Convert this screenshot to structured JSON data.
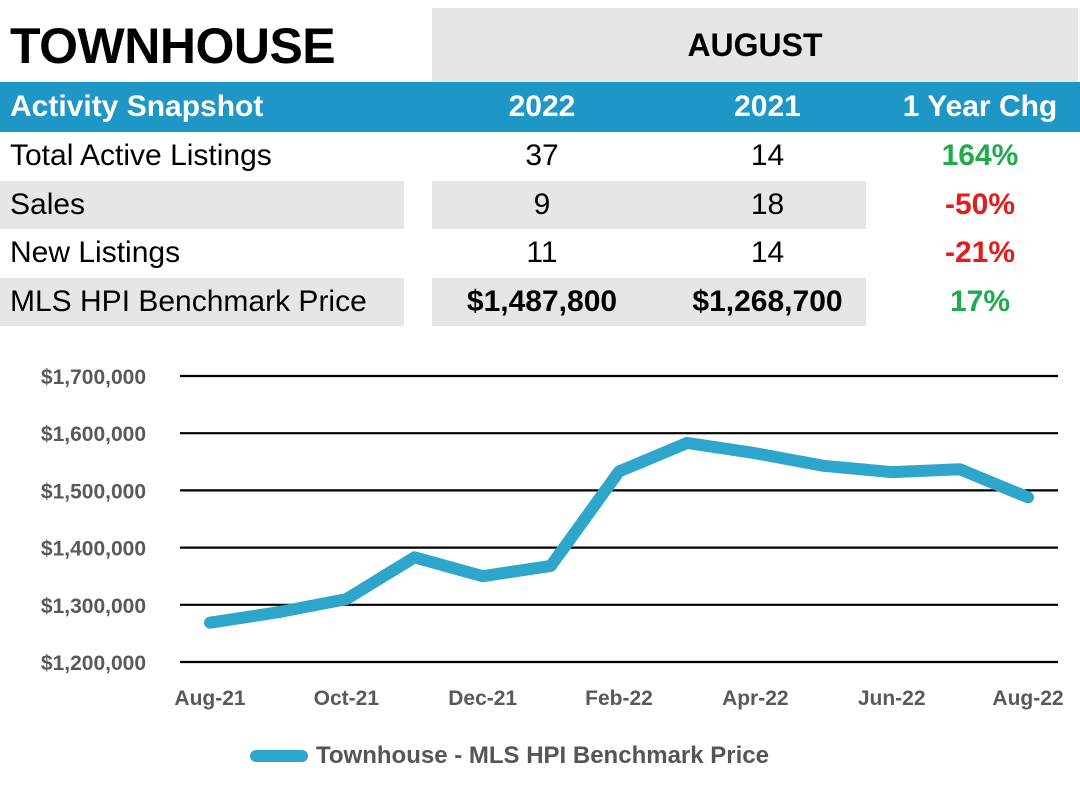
{
  "header": {
    "title": "TOWNHOUSE",
    "month": "AUGUST"
  },
  "table": {
    "columns": [
      "Activity Snapshot",
      "2022",
      "2021",
      "1 Year Chg"
    ],
    "rows": [
      {
        "label": "Total Active Listings",
        "v2022": "37",
        "v2021": "14",
        "chg": "164%",
        "chg_sign": "pos"
      },
      {
        "label": "Sales",
        "v2022": "9",
        "v2021": "18",
        "chg": "-50%",
        "chg_sign": "neg"
      },
      {
        "label": "New Listings",
        "v2022": "11",
        "v2021": "14",
        "chg": "-21%",
        "chg_sign": "neg"
      },
      {
        "label": "MLS HPI Benchmark Price",
        "v2022": "$1,487,800",
        "v2021": "$1,268,700",
        "chg": "17%",
        "chg_sign": "pos"
      }
    ]
  },
  "colors": {
    "header_bg": "#1f97c6",
    "line": "#2ea6cc",
    "positive": "#1faa4b",
    "negative": "#e61c1c",
    "shade": "#e6e6e6"
  },
  "chart_data": {
    "type": "line",
    "x": [
      "Aug-21",
      "Sep-21",
      "Oct-21",
      "Nov-21",
      "Dec-21",
      "Jan-22",
      "Feb-22",
      "Mar-22",
      "Apr-22",
      "May-22",
      "Jun-22",
      "Jul-22",
      "Aug-22"
    ],
    "x_tick_labels": [
      "Aug-21",
      "Oct-21",
      "Dec-21",
      "Feb-22",
      "Apr-22",
      "Jun-22",
      "Aug-22"
    ],
    "series": [
      {
        "name": "Townhouse - MLS HPI Benchmark Price",
        "values": [
          1268700,
          1287000,
          1310000,
          1383000,
          1350000,
          1368000,
          1533000,
          1583000,
          1565000,
          1543000,
          1532000,
          1537000,
          1487800
        ]
      }
    ],
    "y_tick_labels": [
      "$1,700,000",
      "$1,600,000",
      "$1,500,000",
      "$1,400,000",
      "$1,300,000",
      "$1,200,000"
    ],
    "ylim": [
      1200000,
      1700000
    ],
    "y_ticks": [
      1700000,
      1600000,
      1500000,
      1400000,
      1300000,
      1200000
    ],
    "grid": true,
    "legend_position": "bottom",
    "title": "",
    "xlabel": "",
    "ylabel": ""
  }
}
